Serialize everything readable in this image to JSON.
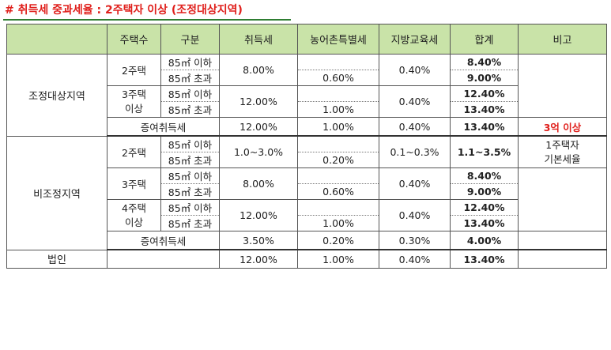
{
  "title": "# 취득세 중과세율 : 2주택자 이상 (조정대상지역)",
  "header": [
    "",
    "주택수",
    "구분",
    "취득세",
    "농어촌특별세",
    "지방교육세",
    "합계",
    "비고"
  ],
  "area_small": "85㎡ 이하",
  "area_large": "85㎡ 초과",
  "gift_tax": "증여취득세",
  "adjusted": {
    "region": "조정대상지역",
    "two": {
      "label": "2주택",
      "acq": "8.00%",
      "rural": "0.60%",
      "edu": "0.40%",
      "total_small": "8.40%",
      "total_large": "9.00%"
    },
    "three": {
      "label_line1": "3주택",
      "label_line2": "이상",
      "acq": "12.00%",
      "rural": "1.00%",
      "edu": "0.40%",
      "total_small": "12.40%",
      "total_large": "13.40%"
    },
    "gift": {
      "acq": "12.00%",
      "rural": "1.00%",
      "edu": "0.40%",
      "total": "13.40%",
      "note": "3억 이상"
    }
  },
  "non_adjusted": {
    "region": "비조정지역",
    "two": {
      "label": "2주택",
      "acq": "1.0~3.0%",
      "rural": "0.20%",
      "edu": "0.1~0.3%",
      "total": "1.1~3.5%",
      "note_line1": "1주택자",
      "note_line2": "기본세율"
    },
    "three": {
      "label": "3주택",
      "acq": "8.00%",
      "rural": "0.60%",
      "edu": "0.40%",
      "total_small": "8.40%",
      "total_large": "9.00%"
    },
    "four": {
      "label_line1": "4주택",
      "label_line2": "이상",
      "acq": "12.00%",
      "rural": "1.00%",
      "edu": "0.40%",
      "total_small": "12.40%",
      "total_large": "13.40%"
    },
    "gift": {
      "acq": "3.50%",
      "rural": "0.20%",
      "edu": "0.30%",
      "total": "4.00%"
    }
  },
  "corporate": {
    "region": "법인",
    "acq": "12.00%",
    "rural": "1.00%",
    "edu": "0.40%",
    "total": "13.40%"
  }
}
